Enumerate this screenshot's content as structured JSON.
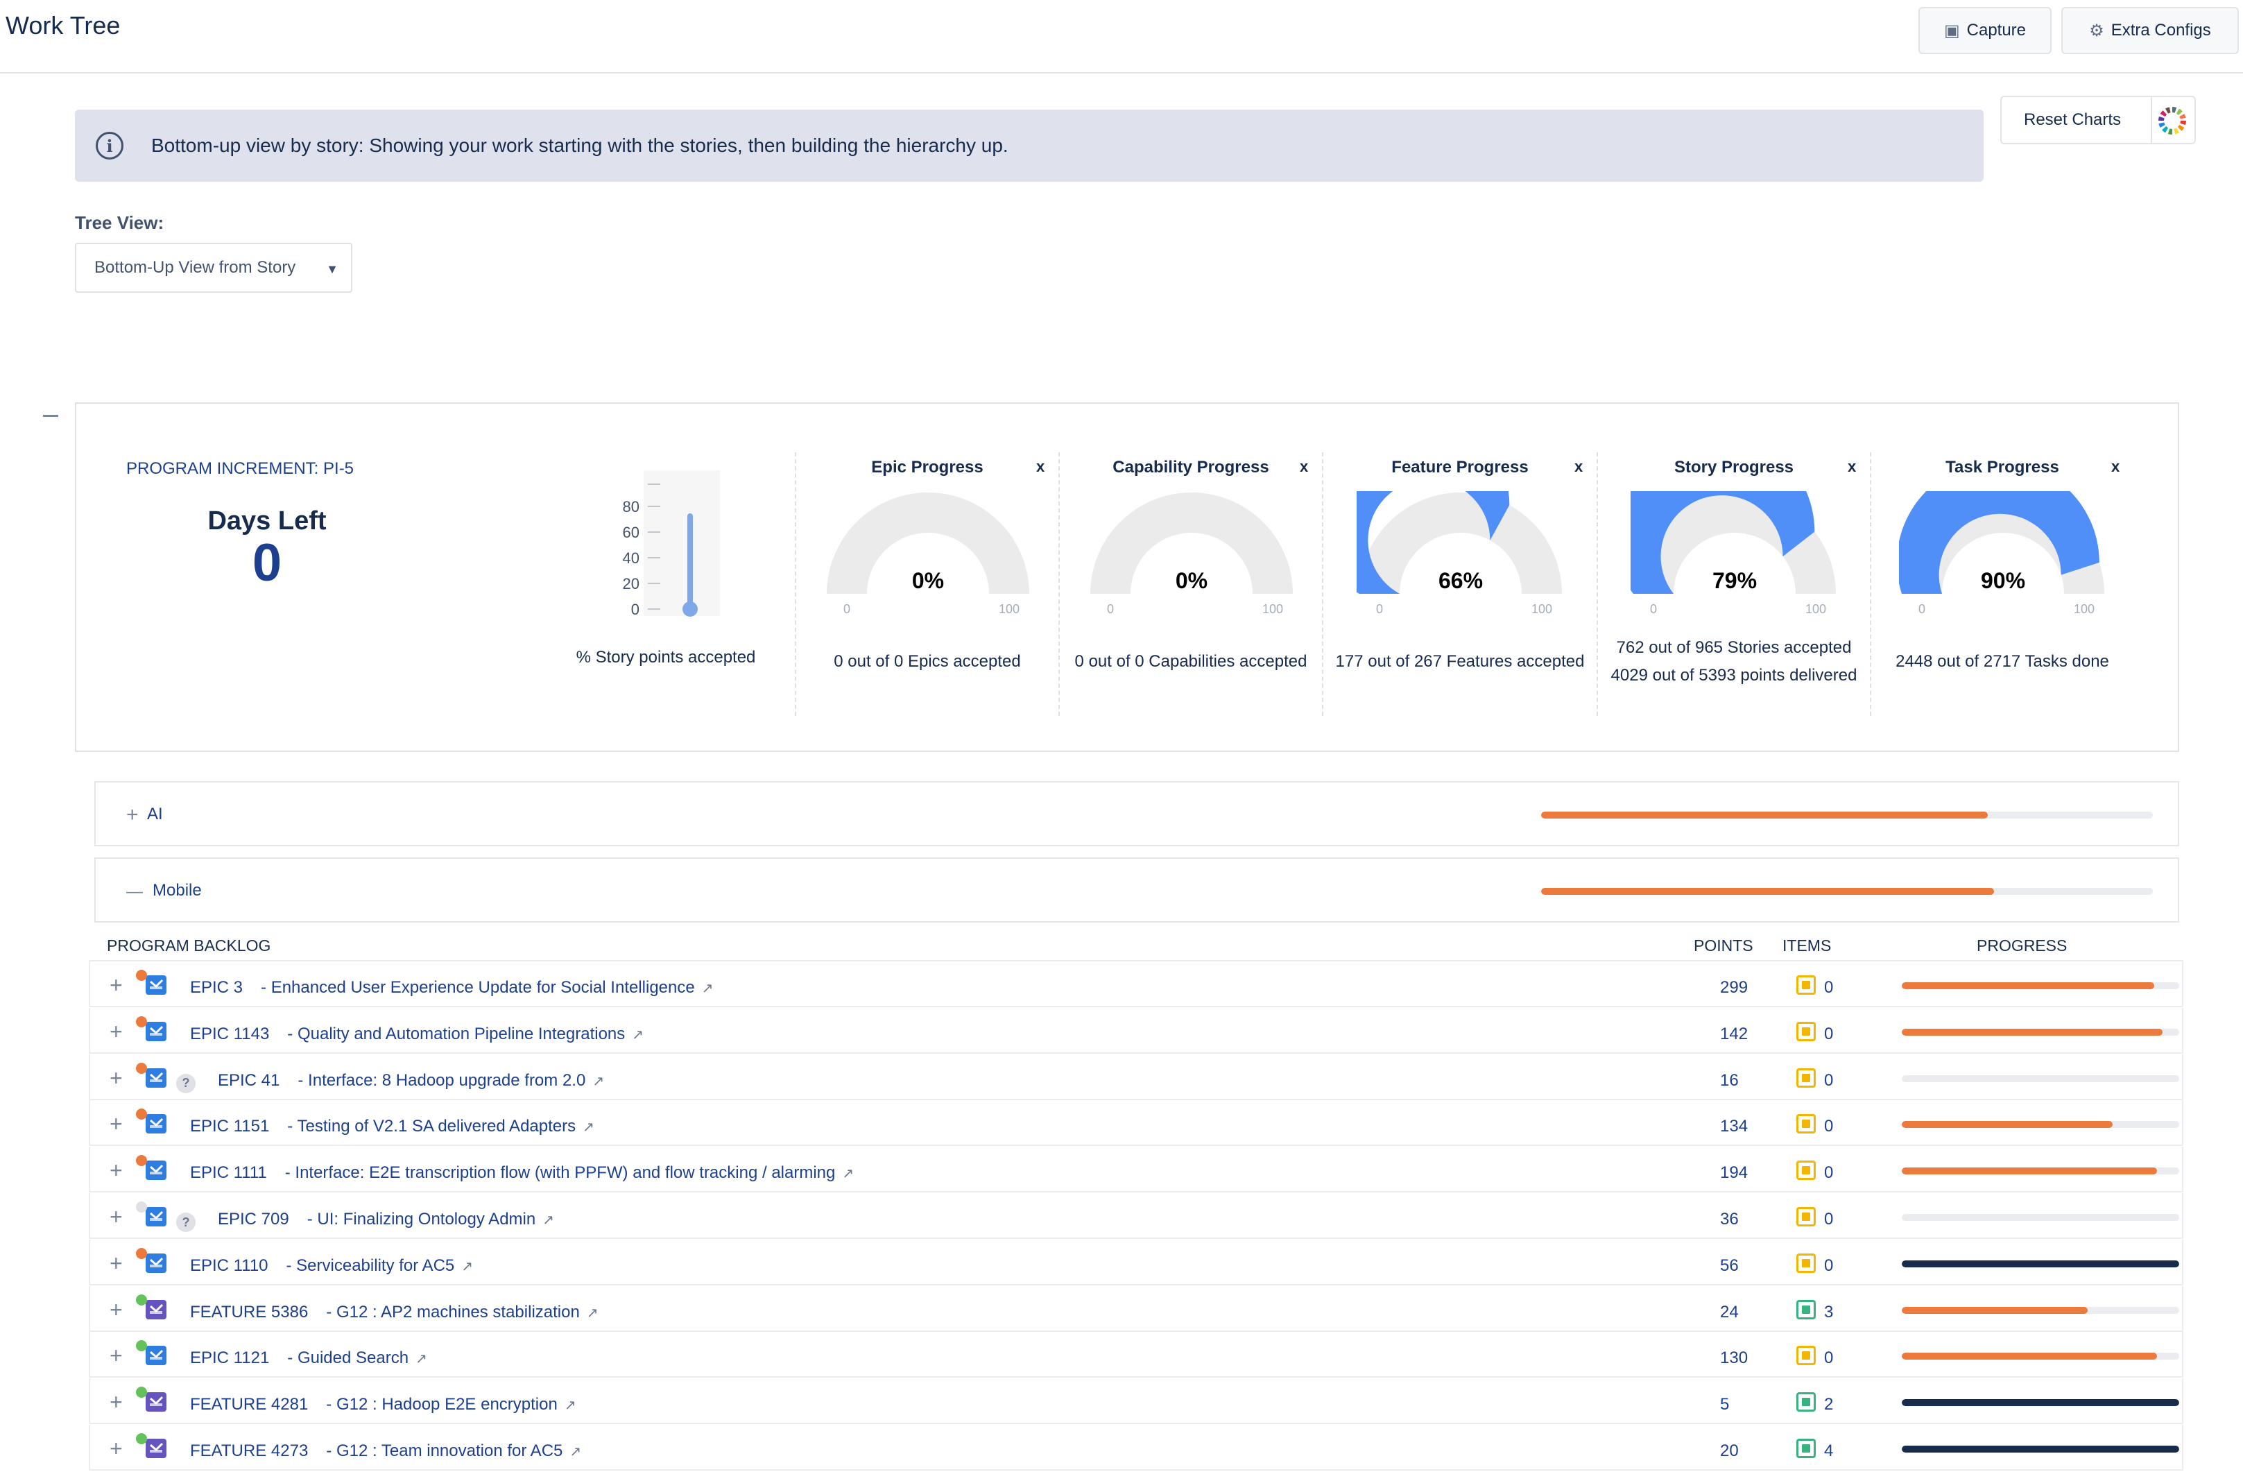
{
  "header": {
    "title": "Work Tree",
    "capture_label": "Capture",
    "extra_configs_label": "Extra Configs"
  },
  "banner": {
    "message": "Bottom-up view by story: Showing your work starting with the stories, then building the hierarchy up."
  },
  "reset_charts_label": "Reset Charts",
  "tree_view": {
    "label": "Tree View:",
    "selected": "Bottom-Up View from Story"
  },
  "panel": {
    "program_increment": "PROGRAM INCREMENT: PI-5",
    "days_left_label": "Days Left",
    "days_left_value": "0",
    "thermometer": {
      "ticks": [
        "80",
        "60",
        "40",
        "20",
        "0"
      ],
      "value_pct": 0,
      "caption": "% Story points accepted"
    },
    "gauges": [
      {
        "title": "Epic Progress",
        "pct": 0,
        "pct_label": "0%",
        "min": "0",
        "max": "100",
        "close": "x",
        "caption": [
          "0 out of 0 Epics accepted"
        ]
      },
      {
        "title": "Capability Progress",
        "pct": 0,
        "pct_label": "0%",
        "min": "0",
        "max": "100",
        "close": "x",
        "caption": [
          "0 out of 0 Capabilities accepted"
        ]
      },
      {
        "title": "Feature Progress",
        "pct": 66,
        "pct_label": "66%",
        "min": "0",
        "max": "100",
        "close": "x",
        "caption": [
          "177 out of 267 Features accepted"
        ]
      },
      {
        "title": "Story Progress",
        "pct": 79,
        "pct_label": "79%",
        "min": "0",
        "max": "100",
        "close": "x",
        "caption": [
          "762 out of 965 Stories accepted",
          "4029 out of 5393 points delivered"
        ]
      },
      {
        "title": "Task Progress",
        "pct": 90,
        "pct_label": "90%",
        "min": "0",
        "max": "100",
        "close": "x",
        "caption": [
          "2448 out of 2717 Tasks done"
        ]
      }
    ]
  },
  "teams": [
    {
      "toggle": "+",
      "name": "AI",
      "progress": 0.73
    },
    {
      "toggle": "—",
      "name": "Mobile",
      "progress": 0.74
    }
  ],
  "backlog": {
    "col_program_backlog": "PROGRAM BACKLOG",
    "col_points": "POINTS",
    "col_items": "ITEMS",
    "col_progress": "PROGRESS",
    "rows": [
      {
        "key": "EPIC 3",
        "title": "- Enhanced User Experience Update for Social Intelligence",
        "points": "299",
        "items": "0",
        "item_kind": "epic",
        "status": "orange",
        "type": "epic",
        "unknown": false,
        "progress": 0.91,
        "bar": "orange"
      },
      {
        "key": "EPIC 1143",
        "title": "- Quality and Automation Pipeline Integrations",
        "points": "142",
        "items": "0",
        "item_kind": "epic",
        "status": "orange",
        "type": "epic",
        "unknown": false,
        "progress": 0.94,
        "bar": "orange"
      },
      {
        "key": "EPIC 41",
        "title": "- Interface: 8 Hadoop upgrade from 2.0",
        "points": "16",
        "items": "0",
        "item_kind": "epic",
        "status": "orange",
        "type": "epic",
        "unknown": true,
        "progress": 0,
        "bar": "orange"
      },
      {
        "key": "EPIC 1151",
        "title": "- Testing of V2.1 SA delivered Adapters",
        "points": "134",
        "items": "0",
        "item_kind": "epic",
        "status": "orange",
        "type": "epic",
        "unknown": false,
        "progress": 0.76,
        "bar": "orange"
      },
      {
        "key": "EPIC 1111",
        "title": "- Interface: E2E transcription flow (with PPFW) and flow tracking / alarming",
        "points": "194",
        "items": "0",
        "item_kind": "epic",
        "status": "orange",
        "type": "epic",
        "unknown": false,
        "progress": 0.92,
        "bar": "orange"
      },
      {
        "key": "EPIC 709",
        "title": "- UI: Finalizing Ontology Admin",
        "points": "36",
        "items": "0",
        "item_kind": "epic",
        "status": "gray",
        "type": "epic",
        "unknown": true,
        "progress": 0,
        "bar": "orange"
      },
      {
        "key": "EPIC 1110",
        "title": "- Serviceability for AC5",
        "points": "56",
        "items": "0",
        "item_kind": "epic",
        "status": "orange",
        "type": "epic",
        "unknown": false,
        "progress": 1.0,
        "bar": "navy"
      },
      {
        "key": "FEATURE 5386",
        "title": "- G12 : AP2 machines stabilization",
        "points": "24",
        "items": "3",
        "item_kind": "story",
        "status": "green",
        "type": "feature",
        "unknown": false,
        "progress": 0.67,
        "bar": "orange"
      },
      {
        "key": "EPIC 1121",
        "title": "- Guided Search",
        "points": "130",
        "items": "0",
        "item_kind": "epic",
        "status": "green",
        "type": "epic",
        "unknown": false,
        "progress": 0.92,
        "bar": "orange"
      },
      {
        "key": "FEATURE 4281",
        "title": "- G12 : Hadoop E2E encryption",
        "points": "5",
        "items": "2",
        "item_kind": "story",
        "status": "green",
        "type": "feature",
        "unknown": false,
        "progress": 1.0,
        "bar": "navy"
      },
      {
        "key": "FEATURE 4273",
        "title": "- G12 : Team innovation for AC5",
        "points": "20",
        "items": "4",
        "item_kind": "story",
        "status": "green",
        "type": "feature",
        "unknown": false,
        "progress": 1.0,
        "bar": "navy"
      }
    ]
  },
  "colors": {
    "gauge_fill": "#4f8ff7",
    "gauge_track": "#ebebeb",
    "bar_orange": "#ec7a3c",
    "bar_navy": "#172b4d",
    "status_orange": "#ec7a3c",
    "status_green": "#63c25a",
    "status_gray": "#dfe1e6",
    "epic_icon": "#2e7de0",
    "feature_icon": "#6554c0",
    "item_epic": "#f2b600",
    "item_story": "#36b37e"
  }
}
